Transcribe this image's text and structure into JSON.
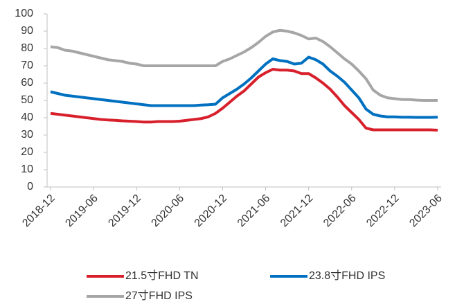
{
  "chart_data": {
    "type": "line",
    "categories": [
      "2018-12",
      null,
      null,
      null,
      null,
      null,
      "2019-06",
      null,
      null,
      null,
      null,
      null,
      "2019-12",
      null,
      null,
      null,
      null,
      null,
      "2020-06",
      null,
      null,
      null,
      null,
      null,
      "2020-12",
      null,
      null,
      null,
      null,
      null,
      "2021-06",
      null,
      null,
      null,
      null,
      null,
      "2021-12",
      null,
      null,
      null,
      null,
      null,
      "2022-06",
      null,
      null,
      null,
      null,
      null,
      "2022-12",
      null,
      null,
      null,
      null,
      null,
      "2023-06"
    ],
    "series": [
      {
        "name": "21.5寸FHD TN",
        "color": "#d7202c",
        "values": [
          42.5,
          42,
          41.5,
          41,
          40.5,
          40,
          39.5,
          39,
          38.7,
          38.5,
          38.2,
          38,
          37.8,
          37.5,
          37.5,
          37.8,
          37.8,
          37.8,
          38,
          38.5,
          39,
          39.5,
          40.5,
          42.5,
          45.5,
          49,
          52.5,
          55.5,
          59.5,
          63.5,
          66,
          68,
          67.5,
          67.5,
          67,
          65.5,
          65.5,
          63,
          60,
          56.5,
          52,
          47,
          43,
          39,
          34,
          33,
          33,
          33,
          33,
          33,
          33,
          33,
          33,
          33,
          32.8
        ]
      },
      {
        "name": "23.8寸FHD IPS",
        "color": "#0070c0",
        "values": [
          55,
          54,
          53,
          52.5,
          52,
          51.5,
          51,
          50.5,
          50,
          49.5,
          49,
          48.5,
          48,
          47.5,
          47,
          47,
          47,
          47,
          47,
          47,
          47,
          47.3,
          47.5,
          47.8,
          51.5,
          54,
          56.5,
          59.5,
          63,
          67,
          71,
          74,
          73,
          72.5,
          71,
          71.5,
          75,
          73.5,
          71,
          67,
          64,
          60.5,
          56,
          51.5,
          45,
          42,
          41,
          40.5,
          40.5,
          40.3,
          40.3,
          40.2,
          40.2,
          40.2,
          40.3
        ]
      },
      {
        "name": "27寸FHD IPS",
        "color": "#a6a6a6",
        "values": [
          81,
          80.5,
          79,
          78.5,
          77.5,
          76.5,
          75.5,
          74.5,
          73.5,
          73,
          72.5,
          71.5,
          71,
          70,
          70,
          70,
          70,
          70,
          70,
          70,
          70,
          70,
          70,
          70,
          72.5,
          74,
          76,
          78,
          80.5,
          83.5,
          87,
          89.5,
          90.5,
          90,
          89,
          87.5,
          85.5,
          86,
          84,
          81,
          77.5,
          74,
          71,
          67,
          62.5,
          56,
          53,
          51.5,
          51,
          50.5,
          50.5,
          50.2,
          50,
          50,
          50
        ]
      }
    ],
    "ylim": [
      0,
      100
    ],
    "yticks": [
      0,
      10,
      20,
      30,
      40,
      50,
      60,
      70,
      80,
      90,
      100
    ],
    "grid": false
  }
}
